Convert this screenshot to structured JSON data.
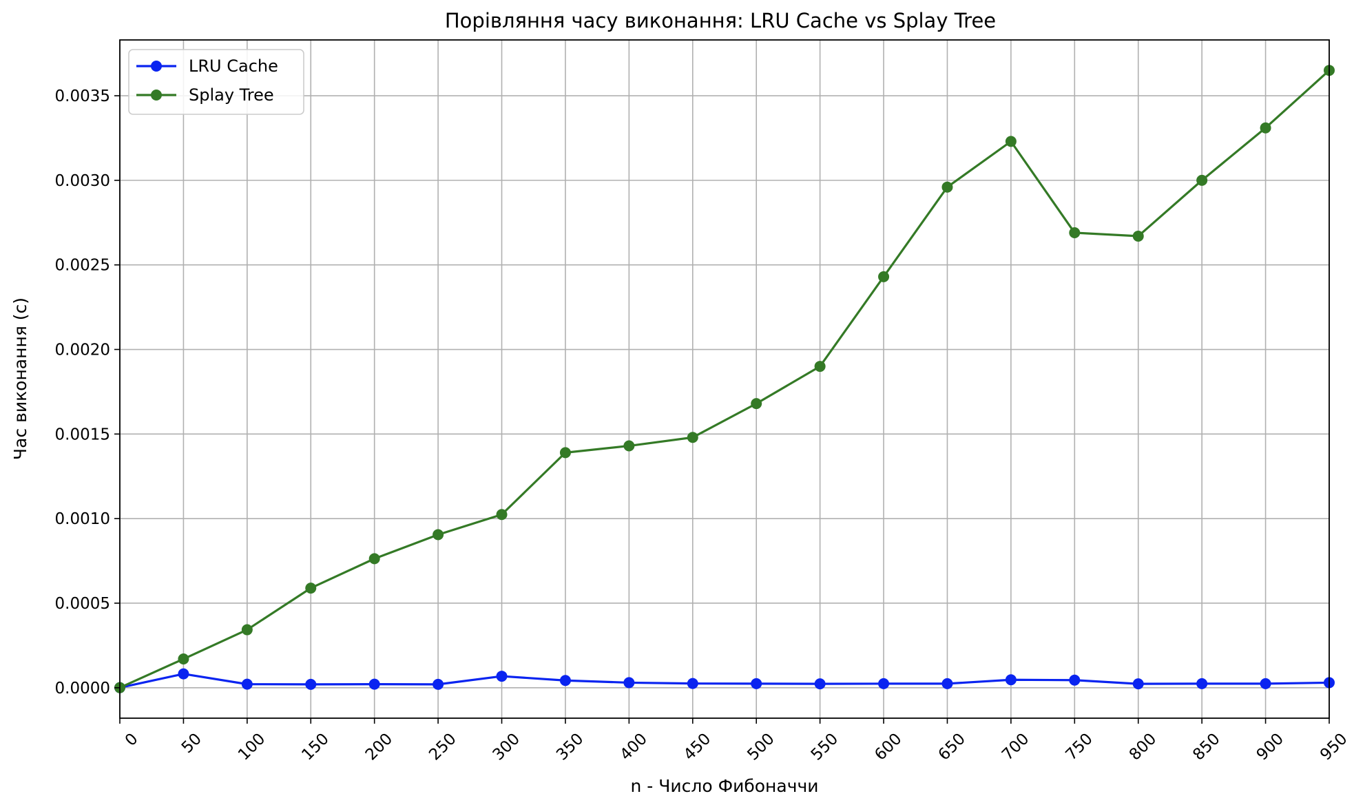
{
  "chart_data": {
    "type": "line",
    "title": "Порівляння часу виконання: LRU Cache vs Splay Tree",
    "xlabel": "n - Число Фибоначчи",
    "ylabel": "Час виконання (с)",
    "x": [
      0,
      50,
      100,
      150,
      200,
      250,
      300,
      350,
      400,
      450,
      500,
      550,
      600,
      650,
      700,
      750,
      800,
      850,
      900,
      950
    ],
    "x_tick_labels": [
      "0",
      "50",
      "100",
      "150",
      "200",
      "250",
      "300",
      "350",
      "400",
      "450",
      "500",
      "550",
      "600",
      "650",
      "700",
      "750",
      "800",
      "850",
      "900",
      "950"
    ],
    "y_ticks": [
      0.0,
      0.0005,
      0.001,
      0.0015,
      0.002,
      0.0025,
      0.003,
      0.0035
    ],
    "y_tick_labels": [
      "0.0000",
      "0.0005",
      "0.0010",
      "0.0015",
      "0.0020",
      "0.0025",
      "0.0030",
      "0.0035"
    ],
    "xlim": [
      0,
      950
    ],
    "ylim": [
      -0.00018,
      0.00383
    ],
    "grid": true,
    "legend_position": "top-left",
    "series": [
      {
        "name": "LRU Cache",
        "color": "#0a24f0",
        "values": [
          5e-07,
          8.2e-05,
          2.1e-05,
          2e-05,
          2.1e-05,
          2e-05,
          6.8e-05,
          4.3e-05,
          3e-05,
          2.5e-05,
          2.4e-05,
          2.3e-05,
          2.4e-05,
          2.4e-05,
          4.7e-05,
          4.5e-05,
          2.3e-05,
          2.4e-05,
          2.4e-05,
          3e-05
        ]
      },
      {
        "name": "Splay Tree",
        "color": "#347a26",
        "values": [
          5e-07,
          0.00017,
          0.000343,
          0.000589,
          0.000763,
          0.000905,
          0.001024,
          0.00139,
          0.00143,
          0.00148,
          0.00168,
          0.0019,
          0.00243,
          0.00296,
          0.00323,
          0.00269,
          0.00267,
          0.003,
          0.00331,
          0.00365
        ]
      }
    ]
  }
}
